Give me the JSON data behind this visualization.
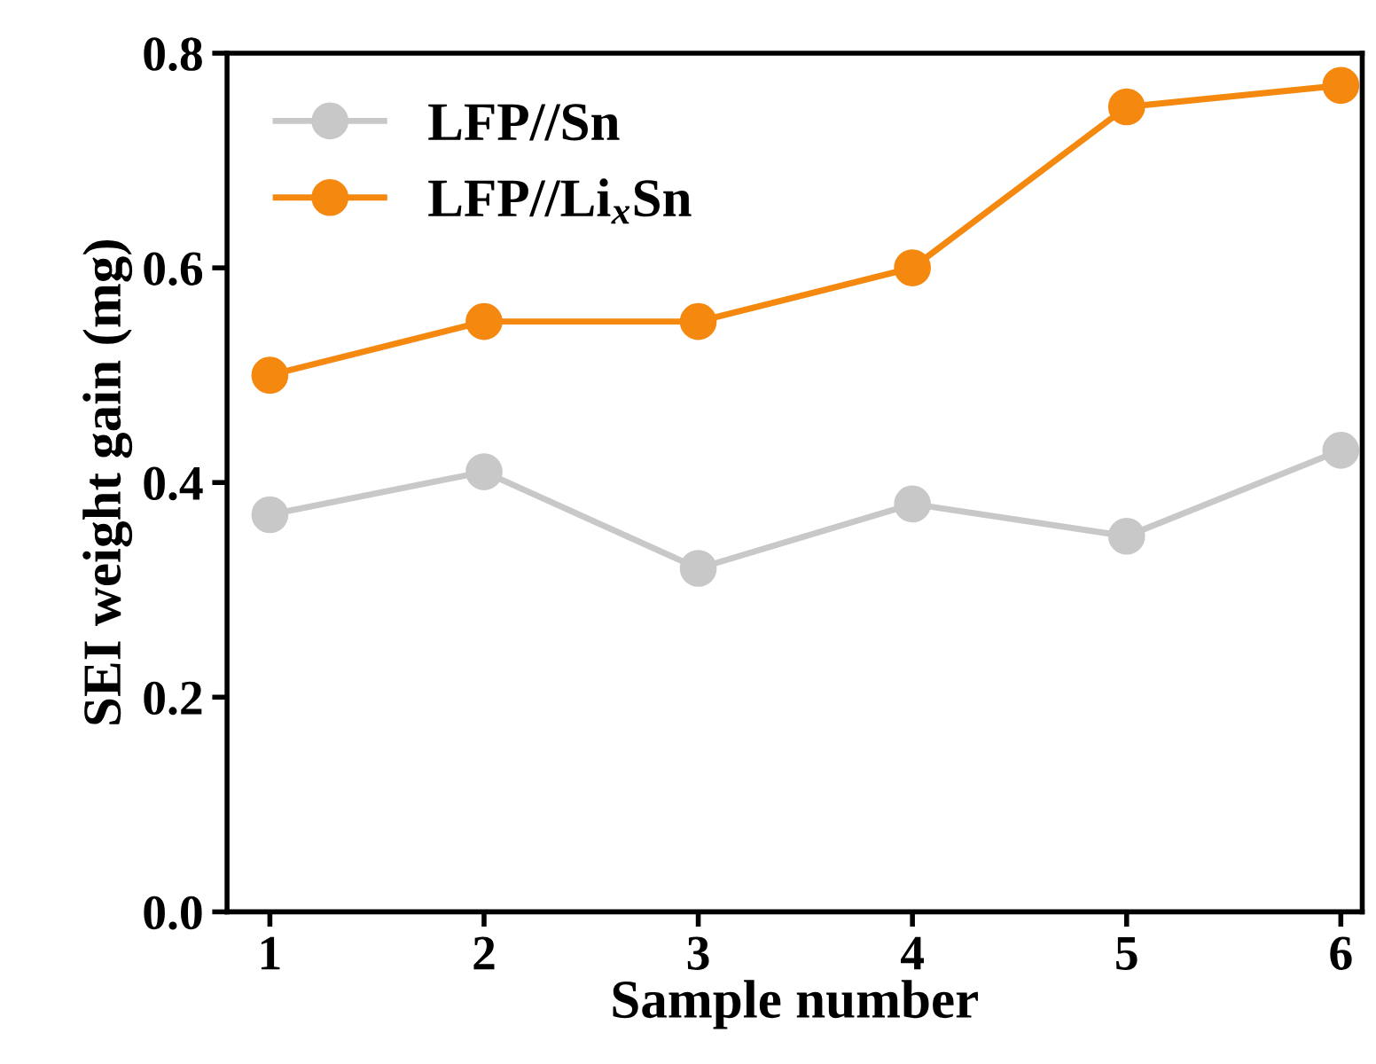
{
  "chart_data": {
    "type": "line",
    "xlabel": "Sample number",
    "ylabel": "SEI weight gain (mg)",
    "x": [
      1,
      2,
      3,
      4,
      5,
      6
    ],
    "series": [
      {
        "name": "LFP//Sn",
        "color": "#c8c8c8",
        "values": [
          0.37,
          0.41,
          0.32,
          0.38,
          0.35,
          0.43
        ]
      },
      {
        "name": "LFP//Li$_{x}$Sn",
        "color": "#f5880f",
        "values": [
          0.5,
          0.55,
          0.55,
          0.6,
          0.75,
          0.77
        ]
      }
    ],
    "xlim": [
      0.8,
      6.1
    ],
    "ylim": [
      0,
      0.8
    ],
    "xticks": [
      1,
      2,
      3,
      4,
      5,
      6
    ],
    "yticks": [
      {
        "value": 0,
        "label": "0.0"
      },
      0.2,
      0.4,
      0.6,
      0.8
    ],
    "marker": "circle",
    "line_style": "solid",
    "legend": "top left",
    "grid": false
  }
}
